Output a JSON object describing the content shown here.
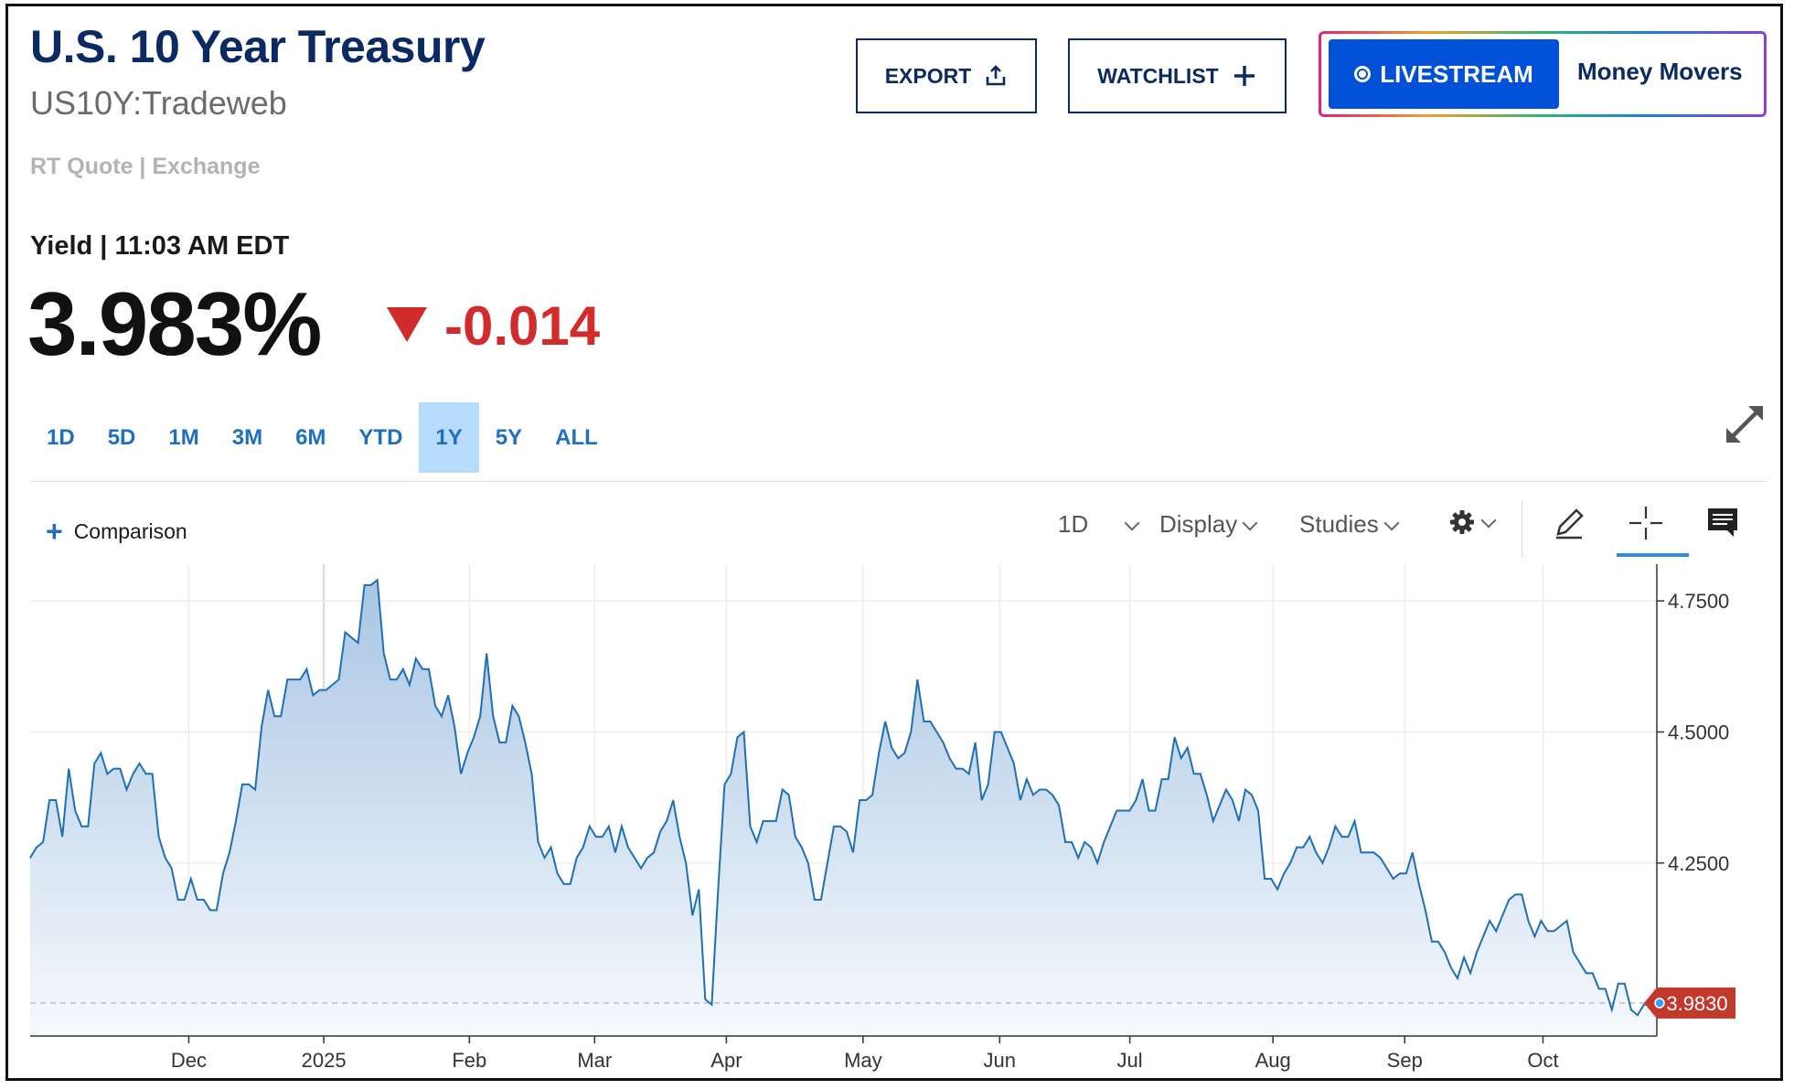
{
  "header": {
    "title": "U.S. 10 Year Treasury",
    "symbol": "US10Y:Tradeweb",
    "quote_source": "RT Quote | Exchange",
    "yield_line": "Yield | 11:03 AM EDT",
    "price": "3.983%",
    "change": "-0.014"
  },
  "actions": {
    "export_label": "EXPORT",
    "watchlist_label": "WATCHLIST",
    "livestream_label": "LIVESTREAM",
    "money_movers_label": "Money Movers"
  },
  "ranges": {
    "items": [
      "1D",
      "5D",
      "1M",
      "3M",
      "6M",
      "YTD",
      "1Y",
      "5Y",
      "ALL"
    ],
    "selected": "1Y"
  },
  "toolbar": {
    "comparison_label": "Comparison",
    "interval_label": "1D",
    "display_label": "Display",
    "studies_label": "Studies"
  },
  "icons": [
    "upload-icon",
    "plus-icon",
    "livestream-dot-icon",
    "expand-icon",
    "gear-icon",
    "pencil-icon",
    "crosshair-icon",
    "comment-icon",
    "chevron-down-icon"
  ],
  "colors": {
    "title": "#0b2a63",
    "negative": "#d22b2b",
    "line": "#1f6fb5",
    "selected_range": "#b6dbfb",
    "live_button": "#0051d8",
    "price_flag": "#c0392b"
  },
  "chart_data": {
    "type": "area",
    "title": "",
    "xlabel": "",
    "ylabel": "",
    "x_tick_labels": [
      "Dec",
      "2025",
      "Feb",
      "Mar",
      "Apr",
      "May",
      "Jun",
      "Jul",
      "Aug",
      "Sep",
      "Oct"
    ],
    "y_tick_labels": [
      "4.7500",
      "4.5000",
      "4.2500"
    ],
    "y_ticks": [
      4.75,
      4.5,
      4.25
    ],
    "ylim": [
      3.92,
      4.82
    ],
    "grid": true,
    "last_value": 3.983,
    "last_value_label": "3.9830",
    "reference_line": 3.983,
    "series": [
      {
        "values": [
          4.26,
          4.28,
          4.29,
          4.37,
          4.37,
          4.3,
          4.43,
          4.35,
          4.32,
          4.32,
          4.44,
          4.46,
          4.42,
          4.43,
          4.43,
          4.39,
          4.42,
          4.44,
          4.42,
          4.42,
          4.3,
          4.26,
          4.24,
          4.18,
          4.18,
          4.22,
          4.18,
          4.18,
          4.16,
          4.16,
          4.23,
          4.27,
          4.33,
          4.4,
          4.4,
          4.39,
          4.51,
          4.58,
          4.53,
          4.53,
          4.6,
          4.6,
          4.6,
          4.62,
          4.57,
          4.58,
          4.58,
          4.59,
          4.6,
          4.69,
          4.68,
          4.67,
          4.78,
          4.78,
          4.79,
          4.65,
          4.6,
          4.6,
          4.62,
          4.59,
          4.64,
          4.62,
          4.62,
          4.55,
          4.53,
          4.57,
          4.51,
          4.42,
          4.46,
          4.49,
          4.53,
          4.65,
          4.53,
          4.48,
          4.48,
          4.55,
          4.53,
          4.48,
          4.42,
          4.29,
          4.26,
          4.28,
          4.23,
          4.21,
          4.21,
          4.26,
          4.28,
          4.32,
          4.3,
          4.3,
          4.32,
          4.27,
          4.32,
          4.28,
          4.26,
          4.24,
          4.26,
          4.27,
          4.31,
          4.33,
          4.37,
          4.3,
          4.25,
          4.15,
          4.2,
          3.99,
          3.98,
          4.2,
          4.4,
          4.42,
          4.49,
          4.5,
          4.32,
          4.29,
          4.33,
          4.33,
          4.33,
          4.39,
          4.38,
          4.3,
          4.28,
          4.25,
          4.18,
          4.18,
          4.25,
          4.32,
          4.32,
          4.31,
          4.27,
          4.37,
          4.37,
          4.38,
          4.46,
          4.52,
          4.47,
          4.45,
          4.46,
          4.5,
          4.6,
          4.52,
          4.52,
          4.5,
          4.48,
          4.45,
          4.43,
          4.43,
          4.42,
          4.48,
          4.37,
          4.4,
          4.5,
          4.5,
          4.47,
          4.44,
          4.37,
          4.41,
          4.38,
          4.39,
          4.39,
          4.38,
          4.36,
          4.29,
          4.29,
          4.26,
          4.29,
          4.28,
          4.25,
          4.29,
          4.32,
          4.35,
          4.35,
          4.35,
          4.37,
          4.41,
          4.35,
          4.35,
          4.41,
          4.41,
          4.49,
          4.45,
          4.47,
          4.42,
          4.42,
          4.38,
          4.33,
          4.36,
          4.39,
          4.37,
          4.33,
          4.39,
          4.38,
          4.35,
          4.22,
          4.22,
          4.2,
          4.23,
          4.25,
          4.28,
          4.28,
          4.3,
          4.27,
          4.25,
          4.28,
          4.32,
          4.3,
          4.3,
          4.33,
          4.27,
          4.27,
          4.27,
          4.26,
          4.24,
          4.22,
          4.23,
          4.23,
          4.27,
          4.21,
          4.16,
          4.1,
          4.1,
          4.08,
          4.05,
          4.03,
          4.07,
          4.04,
          4.08,
          4.11,
          4.14,
          4.12,
          4.15,
          4.18,
          4.19,
          4.19,
          4.14,
          4.11,
          4.14,
          4.12,
          4.12,
          4.13,
          4.14,
          4.08,
          4.06,
          4.04,
          4.04,
          4.01,
          4.01,
          3.97,
          4.02,
          4.02,
          3.97,
          3.96,
          3.98,
          3.98,
          3.983
        ]
      }
    ]
  }
}
